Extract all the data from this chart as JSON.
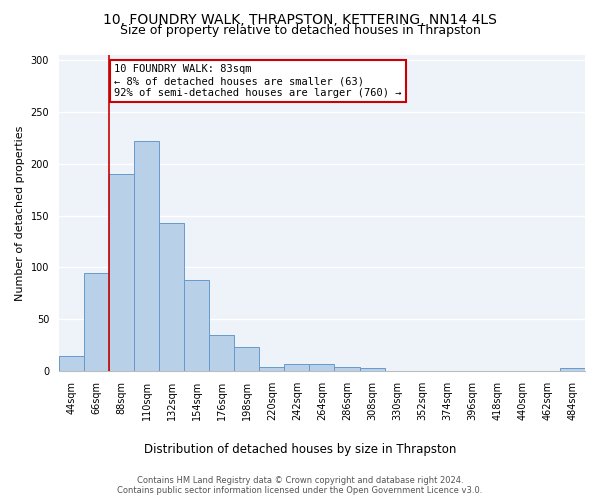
{
  "title": "10, FOUNDRY WALK, THRAPSTON, KETTERING, NN14 4LS",
  "subtitle": "Size of property relative to detached houses in Thrapston",
  "xlabel": "Distribution of detached houses by size in Thrapston",
  "ylabel": "Number of detached properties",
  "bar_color": "#b8d0e8",
  "bar_edge_color": "#6699cc",
  "bin_labels": [
    "44sqm",
    "66sqm",
    "88sqm",
    "110sqm",
    "132sqm",
    "154sqm",
    "176sqm",
    "198sqm",
    "220sqm",
    "242sqm",
    "264sqm",
    "286sqm",
    "308sqm",
    "330sqm",
    "352sqm",
    "374sqm",
    "396sqm",
    "418sqm",
    "440sqm",
    "462sqm",
    "484sqm"
  ],
  "bar_heights": [
    14,
    95,
    190,
    222,
    143,
    88,
    35,
    23,
    4,
    7,
    7,
    4,
    3,
    0,
    0,
    0,
    0,
    0,
    0,
    0,
    3
  ],
  "property_line_bin_index": 1.5,
  "annotation_text": "10 FOUNDRY WALK: 83sqm\n← 8% of detached houses are smaller (63)\n92% of semi-detached houses are larger (760) →",
  "annotation_box_color": "#ffffff",
  "annotation_box_edge_color": "#cc0000",
  "vline_color": "#cc0000",
  "ylim": [
    0,
    305
  ],
  "yticks": [
    0,
    50,
    100,
    150,
    200,
    250,
    300
  ],
  "background_color": "#eef2f9",
  "footer_text": "Contains HM Land Registry data © Crown copyright and database right 2024.\nContains public sector information licensed under the Open Government Licence v3.0.",
  "grid_color": "#ffffff",
  "title_fontsize": 10,
  "subtitle_fontsize": 9,
  "tick_fontsize": 7,
  "ylabel_fontsize": 8,
  "xlabel_fontsize": 8.5,
  "footer_fontsize": 6,
  "annot_fontsize": 7.5
}
